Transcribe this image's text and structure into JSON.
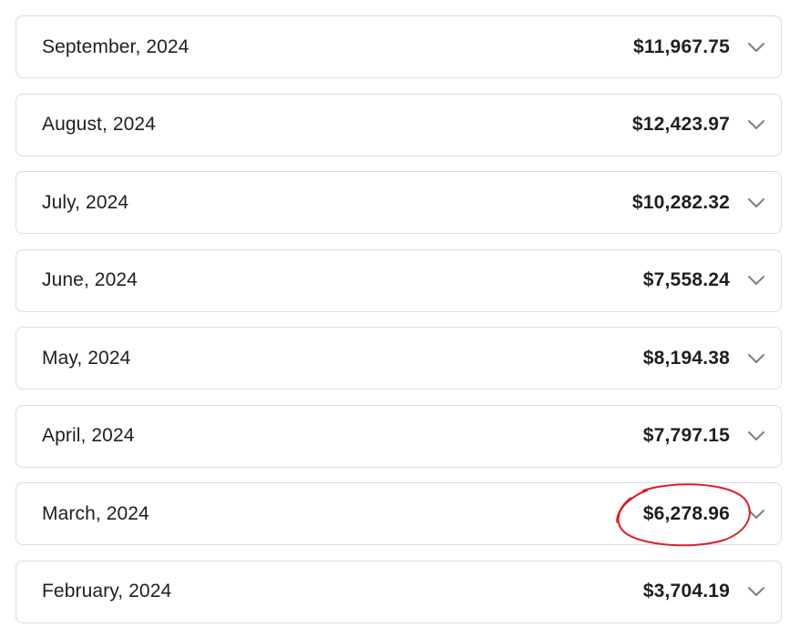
{
  "months": [
    {
      "label": "September, 2024",
      "amount": "$11,967.75"
    },
    {
      "label": "August, 2024",
      "amount": "$12,423.97"
    },
    {
      "label": "July, 2024",
      "amount": "$10,282.32"
    },
    {
      "label": "June, 2024",
      "amount": "$7,558.24"
    },
    {
      "label": "May, 2024",
      "amount": "$8,194.38"
    },
    {
      "label": "April, 2024",
      "amount": "$7,797.15"
    },
    {
      "label": "March, 2024",
      "amount": "$6,278.96"
    },
    {
      "label": "February, 2024",
      "amount": "$3,704.19"
    }
  ],
  "icons": {
    "expand": "chevron-down-icon"
  },
  "colors": {
    "annotation": "#d9202b",
    "chevron": "#7a7f87",
    "border": "#dcdcdc"
  }
}
